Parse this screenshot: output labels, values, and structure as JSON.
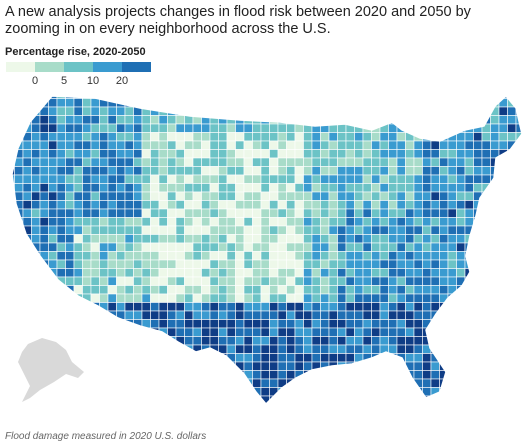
{
  "headline": "A new analysis projects changes in flood risk between 2020 and 2050 by zooming in on every neighborhood across the U.S.",
  "legend": {
    "title": "Percentage rise, 2020-2050",
    "ticks": [
      "0",
      "5",
      "10",
      "20"
    ],
    "colors": [
      "#edf8e9",
      "#a8dcc9",
      "#6cc3c6",
      "#3a9bd0",
      "#1f6fb4",
      "#0f3d86"
    ]
  },
  "map": {
    "region": "Contiguous United States counties with Alaska inset",
    "pattern": "Higher rises concentrated along the Gulf Coast, Florida, the Southeast and Atlantic coast, plus the Northwest; lowest rises across the southwestern and central plains",
    "inset_color": "#d9d9d9"
  },
  "footnote": "Flood damage measured in 2020 U.S. dollars"
}
